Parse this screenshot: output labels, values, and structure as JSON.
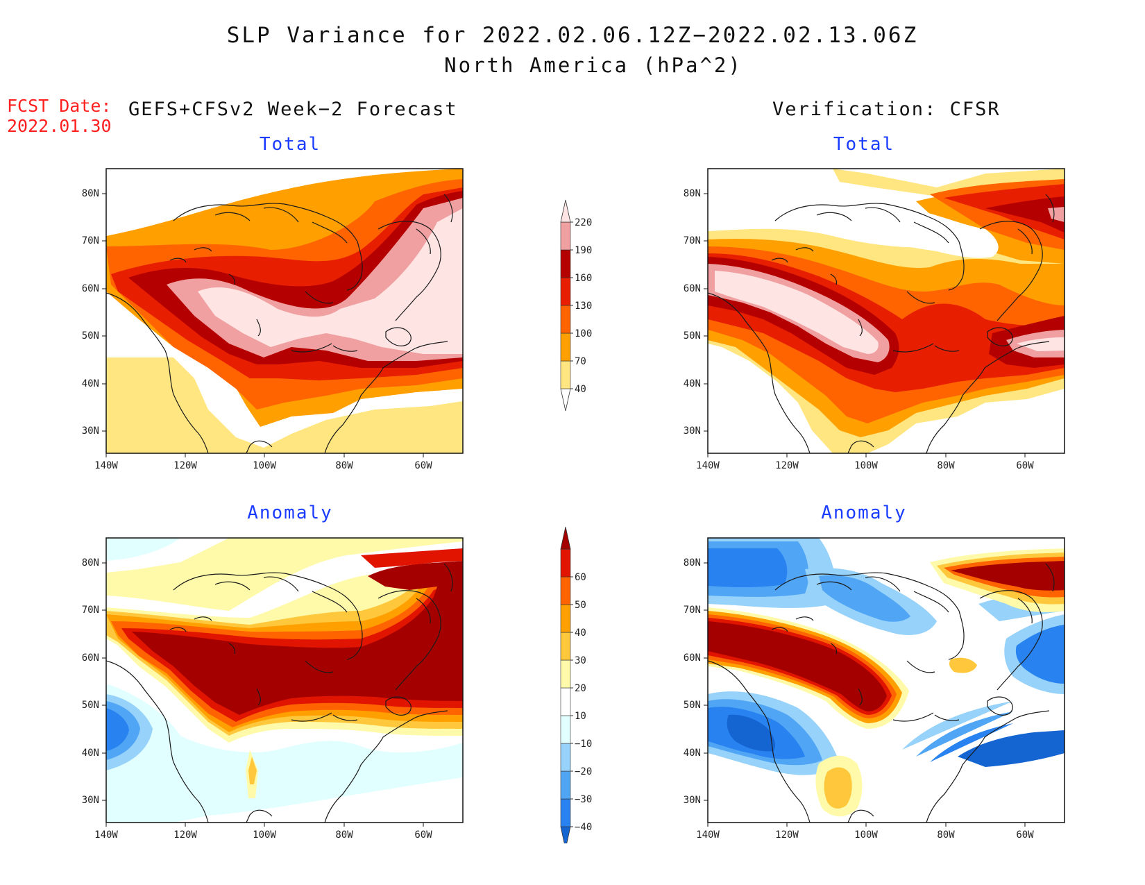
{
  "title": {
    "main": "SLP Variance for 2022.02.06.12Z−2022.02.13.06Z",
    "sub": "North America (hPa^2)"
  },
  "fcst_date": {
    "label": "FCST Date:",
    "value": "2022.01.30"
  },
  "columns": {
    "left": "GEFS+CFSv2 Week−2 Forecast",
    "right": "Verification: CFSR"
  },
  "panels": {
    "top_left": {
      "title": "Total"
    },
    "top_right": {
      "title": "Total"
    },
    "bottom_left": {
      "title": "Anomaly"
    },
    "bottom_right": {
      "title": "Anomaly"
    }
  },
  "axes": {
    "lon_ticks": [
      "140W",
      "120W",
      "100W",
      "80W",
      "60W"
    ],
    "lat_ticks": [
      "80N",
      "70N",
      "60N",
      "50N",
      "40N",
      "30N"
    ],
    "lon_range": [
      -140,
      -50
    ],
    "lat_range": [
      25,
      85
    ]
  },
  "colorbars": {
    "total": {
      "levels": [
        "40",
        "70",
        "100",
        "130",
        "160",
        "190",
        "220"
      ],
      "colors": [
        "#ffffff",
        "#ffe680",
        "#ffa000",
        "#ff6400",
        "#e81e00",
        "#b40000",
        "#f0a0a0",
        "#ffe4e4"
      ]
    },
    "anomaly": {
      "levels": [
        "-40",
        "-30",
        "-20",
        "-10",
        "10",
        "20",
        "30",
        "40",
        "50",
        "60"
      ],
      "colors": [
        "#1464d2",
        "#2882f0",
        "#50a5f5",
        "#96d2fa",
        "#e1ffff",
        "#ffffff",
        "#fffaaa",
        "#ffc83c",
        "#ffa000",
        "#ff6400",
        "#e11400",
        "#a50000"
      ]
    }
  }
}
